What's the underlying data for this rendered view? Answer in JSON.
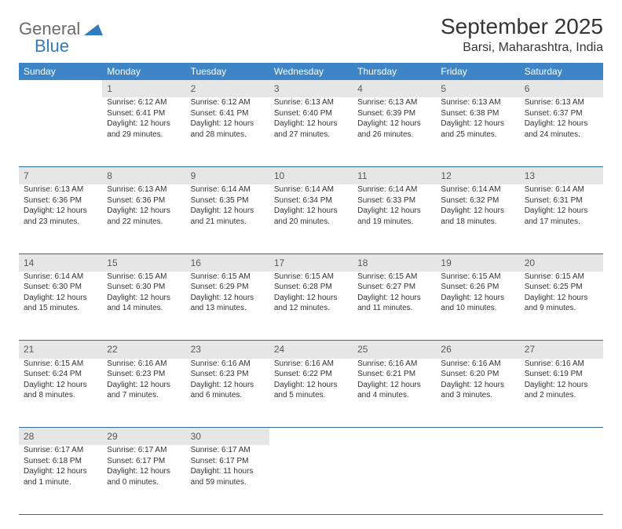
{
  "brand": {
    "part1": "General",
    "part2": "Blue"
  },
  "title": "September 2025",
  "location": "Barsi, Maharashtra, India",
  "colors": {
    "header_bg": "#3d85c6",
    "header_text": "#ffffff",
    "daynum_bg": "#e6e6e6",
    "daynum_text": "#5a5a5a",
    "row_divider": "#2f6aa0",
    "body_text": "#333333",
    "logo_gray": "#6b6b6b",
    "logo_blue": "#2f7bbf"
  },
  "weekdays": [
    "Sunday",
    "Monday",
    "Tuesday",
    "Wednesday",
    "Thursday",
    "Friday",
    "Saturday"
  ],
  "weeks": [
    [
      null,
      {
        "n": "1",
        "sr": "Sunrise: 6:12 AM",
        "ss": "Sunset: 6:41 PM",
        "d1": "Daylight: 12 hours",
        "d2": "and 29 minutes."
      },
      {
        "n": "2",
        "sr": "Sunrise: 6:12 AM",
        "ss": "Sunset: 6:41 PM",
        "d1": "Daylight: 12 hours",
        "d2": "and 28 minutes."
      },
      {
        "n": "3",
        "sr": "Sunrise: 6:13 AM",
        "ss": "Sunset: 6:40 PM",
        "d1": "Daylight: 12 hours",
        "d2": "and 27 minutes."
      },
      {
        "n": "4",
        "sr": "Sunrise: 6:13 AM",
        "ss": "Sunset: 6:39 PM",
        "d1": "Daylight: 12 hours",
        "d2": "and 26 minutes."
      },
      {
        "n": "5",
        "sr": "Sunrise: 6:13 AM",
        "ss": "Sunset: 6:38 PM",
        "d1": "Daylight: 12 hours",
        "d2": "and 25 minutes."
      },
      {
        "n": "6",
        "sr": "Sunrise: 6:13 AM",
        "ss": "Sunset: 6:37 PM",
        "d1": "Daylight: 12 hours",
        "d2": "and 24 minutes."
      }
    ],
    [
      {
        "n": "7",
        "sr": "Sunrise: 6:13 AM",
        "ss": "Sunset: 6:36 PM",
        "d1": "Daylight: 12 hours",
        "d2": "and 23 minutes."
      },
      {
        "n": "8",
        "sr": "Sunrise: 6:13 AM",
        "ss": "Sunset: 6:36 PM",
        "d1": "Daylight: 12 hours",
        "d2": "and 22 minutes."
      },
      {
        "n": "9",
        "sr": "Sunrise: 6:14 AM",
        "ss": "Sunset: 6:35 PM",
        "d1": "Daylight: 12 hours",
        "d2": "and 21 minutes."
      },
      {
        "n": "10",
        "sr": "Sunrise: 6:14 AM",
        "ss": "Sunset: 6:34 PM",
        "d1": "Daylight: 12 hours",
        "d2": "and 20 minutes."
      },
      {
        "n": "11",
        "sr": "Sunrise: 6:14 AM",
        "ss": "Sunset: 6:33 PM",
        "d1": "Daylight: 12 hours",
        "d2": "and 19 minutes."
      },
      {
        "n": "12",
        "sr": "Sunrise: 6:14 AM",
        "ss": "Sunset: 6:32 PM",
        "d1": "Daylight: 12 hours",
        "d2": "and 18 minutes."
      },
      {
        "n": "13",
        "sr": "Sunrise: 6:14 AM",
        "ss": "Sunset: 6:31 PM",
        "d1": "Daylight: 12 hours",
        "d2": "and 17 minutes."
      }
    ],
    [
      {
        "n": "14",
        "sr": "Sunrise: 6:14 AM",
        "ss": "Sunset: 6:30 PM",
        "d1": "Daylight: 12 hours",
        "d2": "and 15 minutes."
      },
      {
        "n": "15",
        "sr": "Sunrise: 6:15 AM",
        "ss": "Sunset: 6:30 PM",
        "d1": "Daylight: 12 hours",
        "d2": "and 14 minutes."
      },
      {
        "n": "16",
        "sr": "Sunrise: 6:15 AM",
        "ss": "Sunset: 6:29 PM",
        "d1": "Daylight: 12 hours",
        "d2": "and 13 minutes."
      },
      {
        "n": "17",
        "sr": "Sunrise: 6:15 AM",
        "ss": "Sunset: 6:28 PM",
        "d1": "Daylight: 12 hours",
        "d2": "and 12 minutes."
      },
      {
        "n": "18",
        "sr": "Sunrise: 6:15 AM",
        "ss": "Sunset: 6:27 PM",
        "d1": "Daylight: 12 hours",
        "d2": "and 11 minutes."
      },
      {
        "n": "19",
        "sr": "Sunrise: 6:15 AM",
        "ss": "Sunset: 6:26 PM",
        "d1": "Daylight: 12 hours",
        "d2": "and 10 minutes."
      },
      {
        "n": "20",
        "sr": "Sunrise: 6:15 AM",
        "ss": "Sunset: 6:25 PM",
        "d1": "Daylight: 12 hours",
        "d2": "and 9 minutes."
      }
    ],
    [
      {
        "n": "21",
        "sr": "Sunrise: 6:15 AM",
        "ss": "Sunset: 6:24 PM",
        "d1": "Daylight: 12 hours",
        "d2": "and 8 minutes."
      },
      {
        "n": "22",
        "sr": "Sunrise: 6:16 AM",
        "ss": "Sunset: 6:23 PM",
        "d1": "Daylight: 12 hours",
        "d2": "and 7 minutes."
      },
      {
        "n": "23",
        "sr": "Sunrise: 6:16 AM",
        "ss": "Sunset: 6:23 PM",
        "d1": "Daylight: 12 hours",
        "d2": "and 6 minutes."
      },
      {
        "n": "24",
        "sr": "Sunrise: 6:16 AM",
        "ss": "Sunset: 6:22 PM",
        "d1": "Daylight: 12 hours",
        "d2": "and 5 minutes."
      },
      {
        "n": "25",
        "sr": "Sunrise: 6:16 AM",
        "ss": "Sunset: 6:21 PM",
        "d1": "Daylight: 12 hours",
        "d2": "and 4 minutes."
      },
      {
        "n": "26",
        "sr": "Sunrise: 6:16 AM",
        "ss": "Sunset: 6:20 PM",
        "d1": "Daylight: 12 hours",
        "d2": "and 3 minutes."
      },
      {
        "n": "27",
        "sr": "Sunrise: 6:16 AM",
        "ss": "Sunset: 6:19 PM",
        "d1": "Daylight: 12 hours",
        "d2": "and 2 minutes."
      }
    ],
    [
      {
        "n": "28",
        "sr": "Sunrise: 6:17 AM",
        "ss": "Sunset: 6:18 PM",
        "d1": "Daylight: 12 hours",
        "d2": "and 1 minute."
      },
      {
        "n": "29",
        "sr": "Sunrise: 6:17 AM",
        "ss": "Sunset: 6:17 PM",
        "d1": "Daylight: 12 hours",
        "d2": "and 0 minutes."
      },
      {
        "n": "30",
        "sr": "Sunrise: 6:17 AM",
        "ss": "Sunset: 6:17 PM",
        "d1": "Daylight: 11 hours",
        "d2": "and 59 minutes."
      },
      null,
      null,
      null,
      null
    ]
  ]
}
